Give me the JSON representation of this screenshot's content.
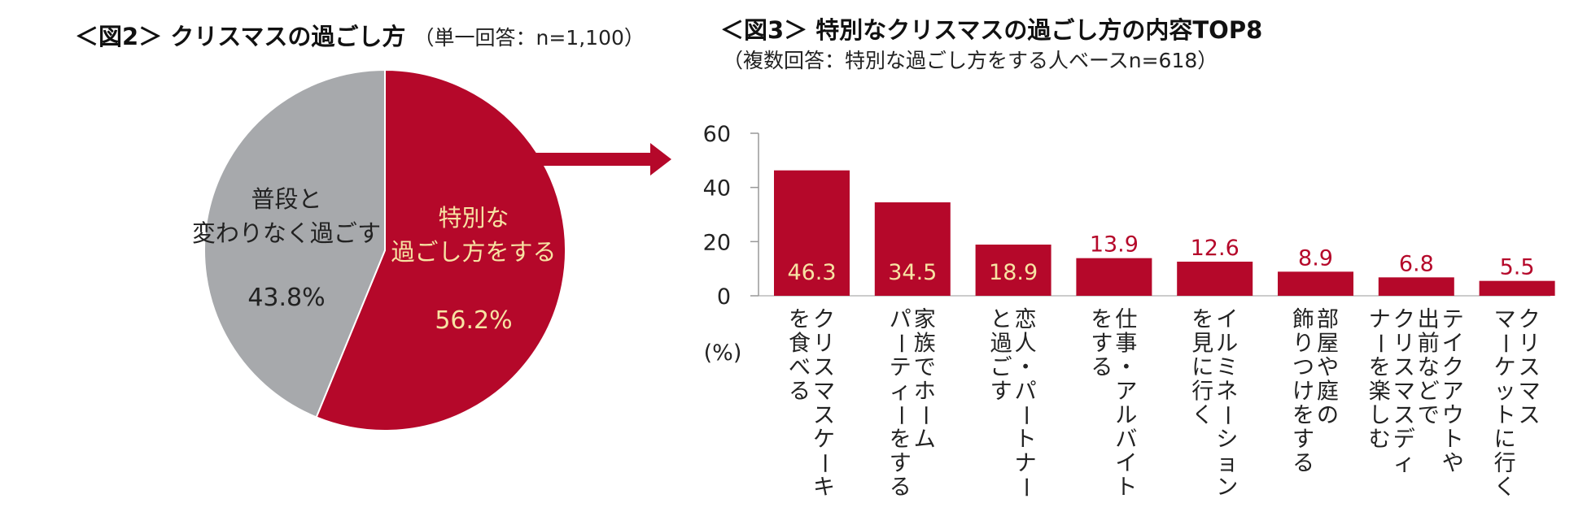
{
  "fig2": {
    "title": "＜図2＞ クリスマスの過ごし方",
    "note": "（単一回答：n=1,100）"
  },
  "fig3": {
    "title": "＜図3＞ 特別なクリスマスの過ごし方の内容TOP8",
    "note": "（複数回答：特別な過ごし方をする人ベースn=618）"
  },
  "colors": {
    "accent": "#b5082a",
    "gray": "#a7a9ac",
    "label_light": "#f7e3a3"
  },
  "chart_data": [
    {
      "type": "pie",
      "title": "",
      "slices": [
        {
          "label_lines": [
            "特別な",
            "過ごし方をする"
          ],
          "value": 56.2,
          "value_label": "56.2%",
          "color": "#b5082a"
        },
        {
          "label_lines": [
            "普段と",
            "変わりなく過ごす"
          ],
          "value": 43.8,
          "value_label": "43.8%",
          "color": "#a7a9ac"
        }
      ]
    },
    {
      "type": "bar",
      "title": "",
      "ylabel": "(%)",
      "ylim": [
        0,
        60
      ],
      "yticks": [
        0,
        20,
        40,
        60
      ],
      "categories": [
        [
          "クリスマスケーキ",
          "を食べる"
        ],
        [
          "家族でホーム",
          "パーティーをする"
        ],
        [
          "恋人・パートナー",
          "と過ごす"
        ],
        [
          "仕事・アルバイト",
          "をする"
        ],
        [
          "イルミネーション",
          "を見に行く"
        ],
        [
          "部屋や庭の",
          "飾りつけをする"
        ],
        [
          "テイクアウトや",
          "出前などで",
          "クリスマスディ",
          "ナーを楽しむ"
        ],
        [
          "クリスマス",
          "マーケットに行く"
        ]
      ],
      "values": [
        46.3,
        34.5,
        18.9,
        13.9,
        12.6,
        8.9,
        6.8,
        5.5
      ],
      "value_labels": [
        "46.3",
        "34.5",
        "18.9",
        "13.9",
        "12.6",
        "8.9",
        "6.8",
        "5.5"
      ],
      "color": "#b5082a"
    }
  ]
}
